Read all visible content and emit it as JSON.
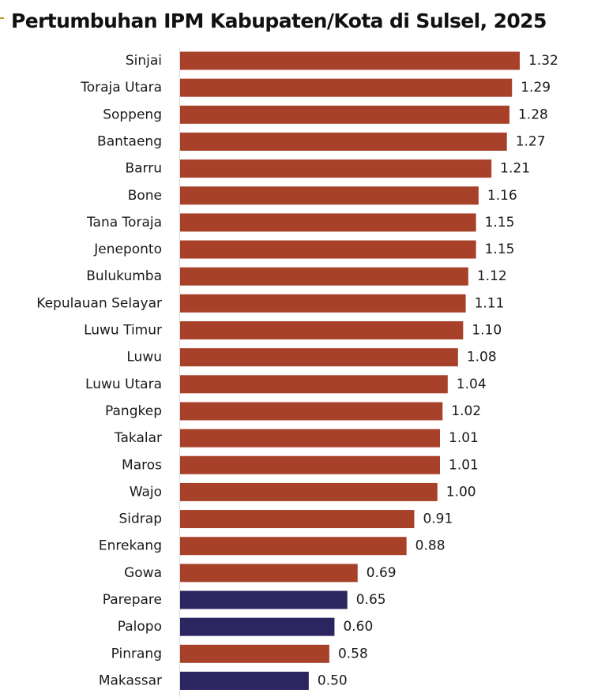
{
  "chart_data": {
    "type": "bar",
    "orientation": "horizontal",
    "title": "Pertumbuhan IPM Kabupaten/Kota di Sulsel, 2025",
    "categories": [
      "Sinjai",
      "Toraja Utara",
      "Soppeng",
      "Bantaeng",
      "Barru",
      "Bone",
      "Tana Toraja",
      "Jeneponto",
      "Bulukumba",
      "Kepulauan Selayar",
      "Luwu Timur",
      "Luwu",
      "Luwu Utara",
      "Pangkep",
      "Takalar",
      "Maros",
      "Wajo",
      "Sidrap",
      "Enrekang",
      "Gowa",
      "Parepare",
      "Palopo",
      "Pinrang",
      "Makassar"
    ],
    "values": [
      1.32,
      1.29,
      1.28,
      1.27,
      1.21,
      1.16,
      1.15,
      1.15,
      1.12,
      1.11,
      1.1,
      1.08,
      1.04,
      1.02,
      1.01,
      1.01,
      1.0,
      0.91,
      0.88,
      0.69,
      0.65,
      0.6,
      0.58,
      0.5
    ],
    "labels": [
      "1.32",
      "1.29",
      "1.28",
      "1.27",
      "1.21",
      "1.16",
      "1.15",
      "1.15",
      "1.12",
      "1.11",
      "1.10",
      "1.08",
      "1.04",
      "1.02",
      "1.01",
      "1.01",
      "1.00",
      "0.91",
      "0.88",
      "0.69",
      "0.65",
      "0.60",
      "0.58",
      "0.50"
    ],
    "bar_type": [
      "kabupaten",
      "kabupaten",
      "kabupaten",
      "kabupaten",
      "kabupaten",
      "kabupaten",
      "kabupaten",
      "kabupaten",
      "kabupaten",
      "kabupaten",
      "kabupaten",
      "kabupaten",
      "kabupaten",
      "kabupaten",
      "kabupaten",
      "kabupaten",
      "kabupaten",
      "kabupaten",
      "kabupaten",
      "kabupaten",
      "kota",
      "kota",
      "kabupaten",
      "kota"
    ],
    "colors": {
      "kabupaten": "#a8412a",
      "kota": "#2b2560"
    },
    "xlim": [
      0,
      1.32
    ],
    "xlabel": "",
    "ylabel": "",
    "grid": false,
    "legend": "none"
  }
}
